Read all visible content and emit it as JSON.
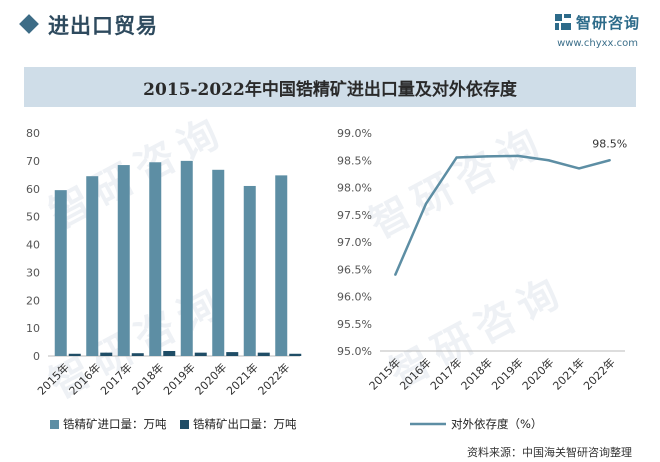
{
  "header": {
    "title": "进出口贸易"
  },
  "brand": {
    "name": "智研咨询",
    "url": "www.chyxx.com",
    "color": "#2d6b8a"
  },
  "watermark_text": "智研咨询",
  "chart_title": "2015-2022年中国锆精矿进出口量及对外依存度",
  "source": "资料来源：中国海关智研咨询整理",
  "chart_data": [
    {
      "type": "bar",
      "categories": [
        "2015年",
        "2016年",
        "2017年",
        "2018年",
        "2019年",
        "2020年",
        "2021年",
        "2022年"
      ],
      "ylim": [
        0,
        80
      ],
      "yticks": [
        "0",
        "10",
        "20",
        "30",
        "40",
        "50",
        "60",
        "70",
        "80"
      ],
      "grid": false,
      "legend_position": "bottom",
      "series": [
        {
          "name": "锆精矿进口量：万吨",
          "color": "#5d8ea4",
          "values": [
            59.5,
            64.5,
            68.5,
            69.5,
            70,
            66.8,
            61,
            64.8
          ]
        },
        {
          "name": "锆精矿出口量：万吨",
          "color": "#1f4d66",
          "values": [
            0.8,
            1.2,
            1.0,
            1.8,
            1.2,
            1.4,
            1.2,
            0.8
          ]
        }
      ]
    },
    {
      "type": "line",
      "categories": [
        "2015年",
        "2016年",
        "2017年",
        "2018年",
        "2019年",
        "2020年",
        "2021年",
        "2022年"
      ],
      "ylim": [
        95.0,
        99.0
      ],
      "yticks": [
        "95.0%",
        "95.5%",
        "96.0%",
        "96.5%",
        "97.0%",
        "97.5%",
        "98.0%",
        "98.5%",
        "99.0%"
      ],
      "grid": false,
      "legend_position": "bottom",
      "series": [
        {
          "name": "对外依存度（%）",
          "color": "#5d8ea4",
          "values": [
            96.4,
            97.7,
            98.55,
            98.57,
            98.58,
            98.5,
            98.35,
            98.5
          ]
        }
      ],
      "data_labels": [
        {
          "index": 7,
          "text": "98.5%"
        }
      ]
    }
  ]
}
